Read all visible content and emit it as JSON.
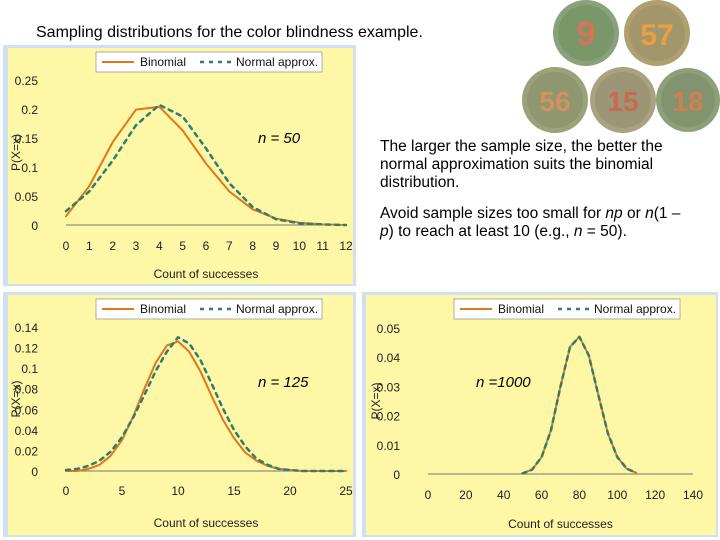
{
  "page": {
    "title": "Sampling distributions for the color blindness example.",
    "paragraph1": "The larger the sample size, the better the normal approximation suits the binomial distribution.",
    "p2_part1": "Avoid sample sizes too small for ",
    "p2_np": "np",
    "p2_part2": " or ",
    "p2_n": "n",
    "p2_part3": "(1 – ",
    "p2_p": "p",
    "p2_part4": ") to reach at least 10 (e.g., ",
    "p2_n2": "n",
    "p2_part5": " = 50).",
    "plates": [
      "9",
      "57",
      "56",
      "15",
      "18"
    ]
  },
  "colors": {
    "binomial": "#e2761b",
    "normal": "#2f7c75",
    "panel": "#fdf7a6",
    "frame": "#cfe0f3"
  },
  "chart_data": [
    {
      "type": "line",
      "annotation": "n = 50",
      "n": 50,
      "p": 0.08,
      "xlabel": "Count of successes",
      "ylabel": "P(X=x)",
      "xlim": [
        0,
        12
      ],
      "ylim": [
        0,
        0.25
      ],
      "xticks": [
        "0",
        "1",
        "2",
        "3",
        "4",
        "5",
        "6",
        "7",
        "8",
        "9",
        "10",
        "11",
        "12"
      ],
      "yticks": [
        "0",
        "0.05",
        "0.1",
        "0.15",
        "0.2",
        "0.25"
      ],
      "legend": [
        "Binomial",
        "Normal approx."
      ],
      "series": [
        {
          "name": "Binomial",
          "x": [
            0,
            1,
            2,
            3,
            4,
            5,
            6,
            7,
            8,
            9,
            10,
            11,
            12
          ],
          "values": [
            0.015,
            0.067,
            0.143,
            0.199,
            0.204,
            0.163,
            0.106,
            0.058,
            0.027,
            0.011,
            0.004,
            0.001,
            0.0
          ]
        },
        {
          "name": "Normal approx.",
          "x": [
            0,
            1,
            2,
            3,
            4,
            5,
            6,
            7,
            8,
            9,
            10,
            11,
            12
          ],
          "values": [
            0.024,
            0.058,
            0.111,
            0.172,
            0.207,
            0.187,
            0.132,
            0.072,
            0.031,
            0.01,
            0.003,
            0.001,
            0.0
          ]
        }
      ]
    },
    {
      "type": "line",
      "annotation": "n = 125",
      "n": 125,
      "p": 0.08,
      "xlabel": "Count of successes",
      "ylabel": "P(X=x)",
      "xlim": [
        0,
        25
      ],
      "ylim": [
        0,
        0.14
      ],
      "xticks": [
        "0",
        "5",
        "10",
        "15",
        "20",
        "25"
      ],
      "yticks": [
        "0",
        "0.02",
        "0.04",
        "0.06",
        "0.08",
        "0.1",
        "0.12",
        "0.14"
      ],
      "legend": [
        "Binomial",
        "Normal approx."
      ],
      "series": [
        {
          "name": "Binomial",
          "x": [
            0,
            1,
            2,
            3,
            4,
            5,
            6,
            7,
            8,
            9,
            10,
            11,
            12,
            13,
            14,
            15,
            16,
            17,
            18,
            19,
            20,
            21,
            22,
            23,
            24,
            25
          ],
          "values": [
            0.0,
            0.0,
            0.002,
            0.006,
            0.015,
            0.03,
            0.053,
            0.08,
            0.105,
            0.122,
            0.126,
            0.116,
            0.097,
            0.073,
            0.05,
            0.032,
            0.018,
            0.01,
            0.005,
            0.002,
            0.001,
            0.0,
            0.0,
            0.0,
            0.0,
            0.0
          ]
        },
        {
          "name": "Normal approx.",
          "x": [
            0,
            1,
            2,
            3,
            4,
            5,
            6,
            7,
            8,
            9,
            10,
            11,
            12,
            13,
            14,
            15,
            16,
            17,
            18,
            19,
            20,
            21,
            22,
            23,
            24,
            25
          ],
          "values": [
            0.001,
            0.002,
            0.005,
            0.01,
            0.019,
            0.033,
            0.052,
            0.074,
            0.097,
            0.116,
            0.13,
            0.124,
            0.108,
            0.085,
            0.061,
            0.04,
            0.024,
            0.012,
            0.006,
            0.002,
            0.001,
            0.0,
            0.0,
            0.0,
            0.0,
            0.0
          ]
        }
      ]
    },
    {
      "type": "line",
      "annotation": "n =1000",
      "n": 1000,
      "p": 0.08,
      "xlabel": "Count of successes",
      "ylabel": "P(X=x)",
      "xlim": [
        0,
        140
      ],
      "ylim": [
        0,
        0.05
      ],
      "xticks": [
        "0",
        "20",
        "40",
        "60",
        "80",
        "100",
        "120",
        "140"
      ],
      "yticks": [
        "0",
        "0.01",
        "0.02",
        "0.03",
        "0.04",
        "0.05"
      ],
      "legend": [
        "Binomial",
        "Normal approx."
      ],
      "series": [
        {
          "name": "Binomial",
          "x": [
            50,
            55,
            60,
            65,
            70,
            75,
            80,
            85,
            90,
            95,
            100,
            105,
            110
          ],
          "values": [
            0.0002,
            0.0015,
            0.0058,
            0.015,
            0.03,
            0.0435,
            0.047,
            0.0405,
            0.027,
            0.014,
            0.0058,
            0.0018,
            0.0004
          ]
        },
        {
          "name": "Normal approx.",
          "x": [
            50,
            55,
            60,
            65,
            70,
            75,
            80,
            85,
            90,
            95,
            100,
            105,
            110
          ],
          "values": [
            0.0002,
            0.0015,
            0.0058,
            0.015,
            0.03,
            0.0435,
            0.047,
            0.0405,
            0.027,
            0.014,
            0.0058,
            0.0018,
            0.0004
          ]
        }
      ]
    }
  ]
}
